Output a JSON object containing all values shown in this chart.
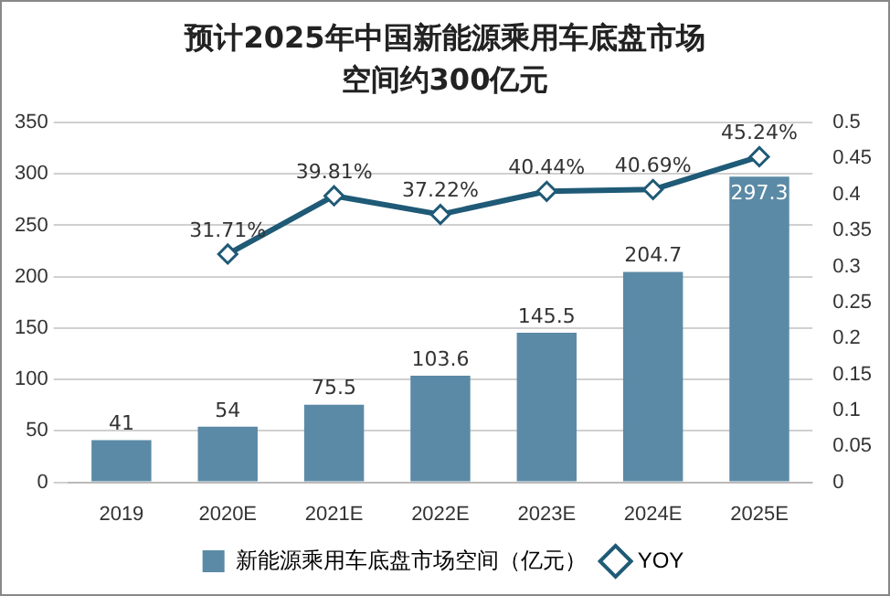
{
  "chart_data": {
    "type": "bar",
    "title": "预计2025年中国新能源乘用车底盘市场空间约300亿元",
    "categories": [
      "2019",
      "2020E",
      "2021E",
      "2022E",
      "2023E",
      "2024E",
      "2025E"
    ],
    "series": [
      {
        "name": "新能源乘用车底盘市场空间（亿元）",
        "color": "#5b8aa6",
        "values": [
          41,
          54,
          75.5,
          103.6,
          145.5,
          204.7,
          297.3
        ],
        "value_labels": [
          "41",
          "54",
          "75.5",
          "103.6",
          "145.5",
          "204.7",
          "297.3"
        ]
      },
      {
        "name": "YOY",
        "type": "line",
        "axis": "y2",
        "color": "#1f5a77",
        "values": [
          null,
          0.3171,
          0.3981,
          0.3722,
          0.4044,
          0.4069,
          0.4524
        ],
        "value_labels": [
          null,
          "31.71%",
          "39.81%",
          "37.22%",
          "40.44%",
          "40.69%",
          "45.24%"
        ]
      }
    ],
    "ylim": [
      0,
      350
    ],
    "yticks": [
      0,
      50,
      100,
      150,
      200,
      250,
      300,
      350
    ],
    "y2lim": [
      0,
      0.5
    ],
    "y2ticks": [
      0,
      0.05,
      0.1,
      0.15,
      0.2,
      0.25,
      0.3,
      0.35,
      0.4,
      0.45,
      0.5
    ],
    "grid": "y",
    "legend": "bottom",
    "marker": "diamond",
    "line_style": "solid"
  }
}
